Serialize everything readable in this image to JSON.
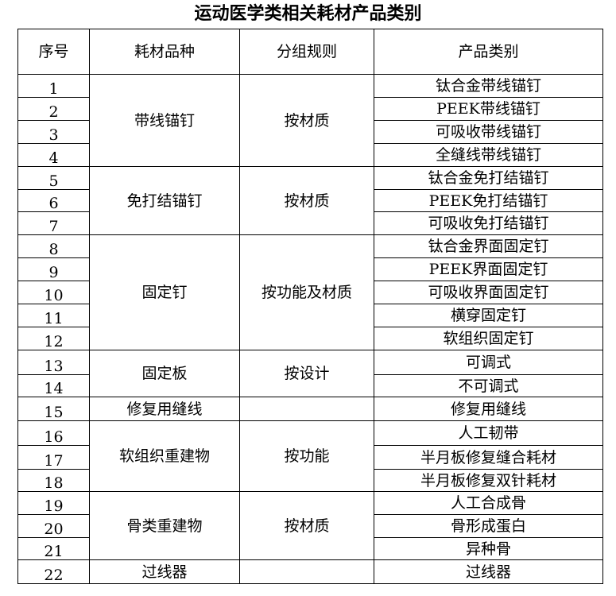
{
  "title": "运动医学类相关耗材产品类别",
  "headers": [
    "序号",
    "耗材品种",
    "分组规则",
    "产品类别"
  ],
  "groups": [
    {
      "variety": "带线锚钉",
      "rule": "按材质",
      "items": [
        {
          "no": "1",
          "product": "钛合金带线锚钉"
        },
        {
          "no": "2",
          "product": "PEEK带线锚钉"
        },
        {
          "no": "3",
          "product": "可吸收带线锚钉"
        },
        {
          "no": "4",
          "product": "全缝线带线锚钉"
        }
      ]
    },
    {
      "variety": "免打结锚钉",
      "rule": "按材质",
      "items": [
        {
          "no": "5",
          "product": "钛合金免打结锚钉"
        },
        {
          "no": "6",
          "product": "PEEK免打结锚钉"
        },
        {
          "no": "7",
          "product": "可吸收免打结锚钉"
        }
      ]
    },
    {
      "variety": "固定钉",
      "rule": "按功能及材质",
      "items": [
        {
          "no": "8",
          "product": "钛合金界面固定钉"
        },
        {
          "no": "9",
          "product": "PEEK界面固定钉"
        },
        {
          "no": "10",
          "product": "可吸收界面固定钉"
        },
        {
          "no": "11",
          "product": "横穿固定钉"
        },
        {
          "no": "12",
          "product": "软组织固定钉"
        }
      ]
    },
    {
      "variety": "固定板",
      "rule": "按设计",
      "items": [
        {
          "no": "13",
          "product": "可调式"
        },
        {
          "no": "14",
          "product": "不可调式"
        }
      ]
    },
    {
      "variety": "修复用缝线",
      "rule": "",
      "items": [
        {
          "no": "15",
          "product": "修复用缝线"
        }
      ]
    },
    {
      "variety": "软组织重建物",
      "rule": "按功能",
      "items": [
        {
          "no": "16",
          "product": "人工韧带"
        },
        {
          "no": "17",
          "product": "半月板修复缝合耗材"
        },
        {
          "no": "18",
          "product": "半月板修复双针耗材"
        }
      ]
    },
    {
      "variety": "骨类重建物",
      "rule": "按材质",
      "items": [
        {
          "no": "19",
          "product": "人工合成骨"
        },
        {
          "no": "20",
          "product": "骨形成蛋白"
        },
        {
          "no": "21",
          "product": "异种骨"
        }
      ]
    },
    {
      "variety": "过线器",
      "rule": "",
      "items": [
        {
          "no": "22",
          "product": "过线器"
        }
      ]
    }
  ]
}
